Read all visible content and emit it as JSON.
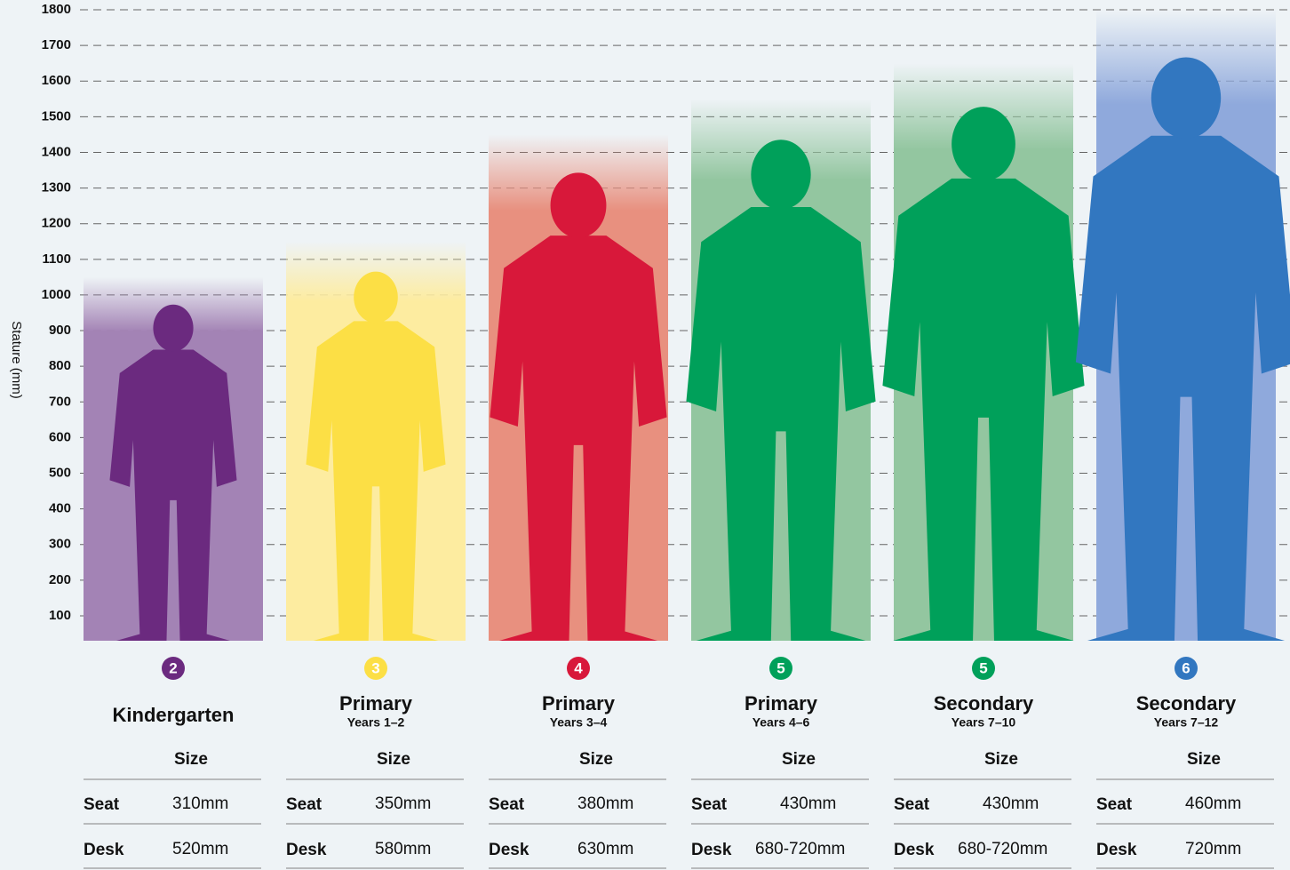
{
  "chart_data": {
    "type": "bar",
    "y_label": "Stature (mm)",
    "categories": [
      "Kindergarten",
      "Primary",
      "Primary",
      "Primary",
      "Secondary",
      "Secondary"
    ],
    "subtitles": [
      null,
      "Years 1–2",
      "Years 3–4",
      "Years 4–6",
      "Years 7–10",
      "Years 7–12"
    ],
    "sizes": [
      2,
      3,
      4,
      5,
      5,
      6
    ],
    "values": [
      1050,
      1150,
      1450,
      1550,
      1650,
      1800
    ],
    "colors": [
      "#a383b5",
      "#fdeca0",
      "#e8907f",
      "#93c6a0",
      "#93c6a0",
      "#8fa9dc"
    ],
    "figure_colors": [
      "#6b2a7f",
      "#fcdf45",
      "#d8183a",
      "#00a05a",
      "#00a05a",
      "#3277c0"
    ],
    "ylim": [
      0,
      1800
    ],
    "yticks": [
      100,
      200,
      300,
      400,
      500,
      600,
      700,
      800,
      900,
      1000,
      1100,
      1200,
      1300,
      1400,
      1500,
      1600,
      1700,
      1800
    ],
    "grid": true,
    "table": {
      "header": "Size",
      "row_labels": [
        "Seat",
        "Desk"
      ],
      "seat": [
        "310mm",
        "350mm",
        "380mm",
        "430mm",
        "430mm",
        "460mm"
      ],
      "desk": [
        "520mm",
        "580mm",
        "630mm",
        "680-720mm",
        "680-720mm",
        "720mm"
      ]
    }
  }
}
